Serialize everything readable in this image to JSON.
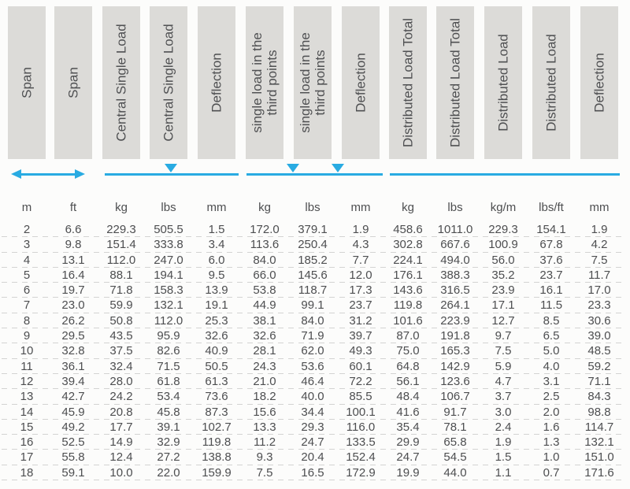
{
  "page": {
    "background": "#fcfcfb"
  },
  "colors": {
    "accent_blue": "#29abe2",
    "header_box_bg": "#dcdbd8",
    "header_text": "#4f5052",
    "data_text": "#4d4e50",
    "row_divider": "#d3d3d2"
  },
  "table": {
    "columns": [
      {
        "header": "Span",
        "unit": "m"
      },
      {
        "header": "Span",
        "unit": "ft"
      },
      {
        "header": "Central Single Load",
        "unit": "kg"
      },
      {
        "header": "Central Single Load",
        "unit": "lbs"
      },
      {
        "header": "Deflection",
        "unit": "mm"
      },
      {
        "header": "single load in the\nthird points",
        "unit": "kg"
      },
      {
        "header": "single load in the\nthird points",
        "unit": "lbs"
      },
      {
        "header": "Deflection",
        "unit": "mm"
      },
      {
        "header": "Distributed Load Total",
        "unit": "kg"
      },
      {
        "header": "Distributed Load Total",
        "unit": "lbs"
      },
      {
        "header": "Distributed Load",
        "unit": "kg/m"
      },
      {
        "header": "Distributed Load",
        "unit": "lbs/ft"
      },
      {
        "header": "Deflection",
        "unit": "mm"
      }
    ],
    "load_diagrams": [
      {
        "name": "span-extent",
        "symbol": "double-headed-arrow",
        "spans_columns": "1-2"
      },
      {
        "name": "central-single-load",
        "symbol": "beam-line-one-down-arrow",
        "spans_columns": "3-5"
      },
      {
        "name": "third-points-load",
        "symbol": "beam-line-two-down-arrows",
        "spans_columns": "6-8"
      },
      {
        "name": "distributed-load",
        "symbol": "beam-line",
        "spans_columns": "9-13"
      }
    ],
    "rows": [
      [
        "2",
        "6.6",
        "229.3",
        "505.5",
        "1.5",
        "172.0",
        "379.1",
        "1.9",
        "458.6",
        "1011.0",
        "229.3",
        "154.1",
        "1.9"
      ],
      [
        "3",
        "9.8",
        "151.4",
        "333.8",
        "3.4",
        "113.6",
        "250.4",
        "4.3",
        "302.8",
        "667.6",
        "100.9",
        "67.8",
        "4.2"
      ],
      [
        "4",
        "13.1",
        "112.0",
        "247.0",
        "6.0",
        "84.0",
        "185.2",
        "7.7",
        "224.1",
        "494.0",
        "56.0",
        "37.6",
        "7.5"
      ],
      [
        "5",
        "16.4",
        "88.1",
        "194.1",
        "9.5",
        "66.0",
        "145.6",
        "12.0",
        "176.1",
        "388.3",
        "35.2",
        "23.7",
        "11.7"
      ],
      [
        "6",
        "19.7",
        "71.8",
        "158.3",
        "13.9",
        "53.8",
        "118.7",
        "17.3",
        "143.6",
        "316.5",
        "23.9",
        "16.1",
        "17.0"
      ],
      [
        "7",
        "23.0",
        "59.9",
        "132.1",
        "19.1",
        "44.9",
        "99.1",
        "23.7",
        "119.8",
        "264.1",
        "17.1",
        "11.5",
        "23.3"
      ],
      [
        "8",
        "26.2",
        "50.8",
        "112.0",
        "25.3",
        "38.1",
        "84.0",
        "31.2",
        "101.6",
        "223.9",
        "12.7",
        "8.5",
        "30.6"
      ],
      [
        "9",
        "29.5",
        "43.5",
        "95.9",
        "32.6",
        "32.6",
        "71.9",
        "39.7",
        "87.0",
        "191.8",
        "9.7",
        "6.5",
        "39.0"
      ],
      [
        "10",
        "32.8",
        "37.5",
        "82.6",
        "40.9",
        "28.1",
        "62.0",
        "49.3",
        "75.0",
        "165.3",
        "7.5",
        "5.0",
        "48.5"
      ],
      [
        "11",
        "36.1",
        "32.4",
        "71.5",
        "50.5",
        "24.3",
        "53.6",
        "60.1",
        "64.8",
        "142.9",
        "5.9",
        "4.0",
        "59.2"
      ],
      [
        "12",
        "39.4",
        "28.0",
        "61.8",
        "61.3",
        "21.0",
        "46.4",
        "72.2",
        "56.1",
        "123.6",
        "4.7",
        "3.1",
        "71.1"
      ],
      [
        "13",
        "42.7",
        "24.2",
        "53.4",
        "73.6",
        "18.2",
        "40.0",
        "85.5",
        "48.4",
        "106.7",
        "3.7",
        "2.5",
        "84.3"
      ],
      [
        "14",
        "45.9",
        "20.8",
        "45.8",
        "87.3",
        "15.6",
        "34.4",
        "100.1",
        "41.6",
        "91.7",
        "3.0",
        "2.0",
        "98.8"
      ],
      [
        "15",
        "49.2",
        "17.7",
        "39.1",
        "102.7",
        "13.3",
        "29.3",
        "116.0",
        "35.4",
        "78.1",
        "2.4",
        "1.6",
        "114.7"
      ],
      [
        "16",
        "52.5",
        "14.9",
        "32.9",
        "119.8",
        "11.2",
        "24.7",
        "133.5",
        "29.9",
        "65.8",
        "1.9",
        "1.3",
        "132.1"
      ],
      [
        "17",
        "55.8",
        "12.4",
        "27.2",
        "138.8",
        "9.3",
        "20.4",
        "152.4",
        "24.7",
        "54.5",
        "1.5",
        "1.0",
        "151.0"
      ],
      [
        "18",
        "59.1",
        "10.0",
        "22.0",
        "159.9",
        "7.5",
        "16.5",
        "172.9",
        "19.9",
        "44.0",
        "1.1",
        "0.7",
        "171.6"
      ]
    ]
  }
}
